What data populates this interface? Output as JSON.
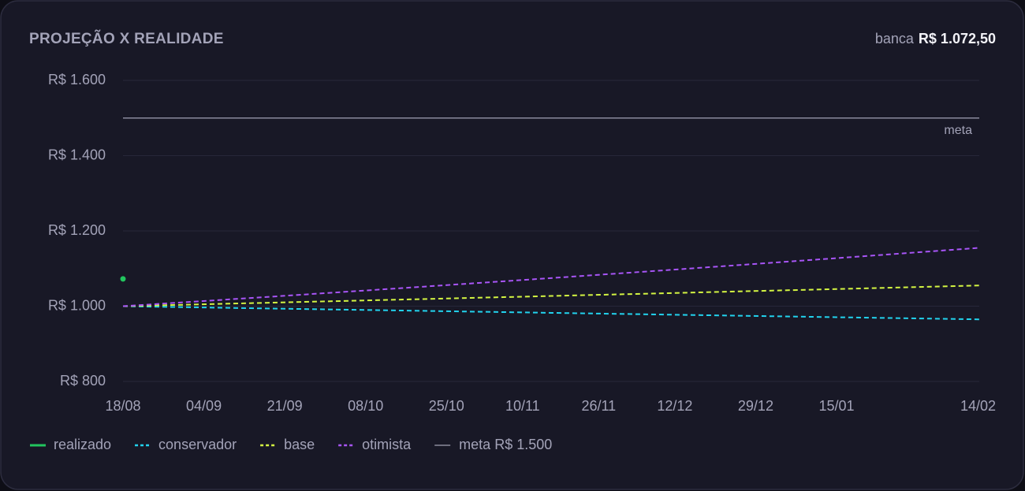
{
  "chart_data": {
    "type": "line",
    "title": "PROJEÇÃO X REALIDADE",
    "bank_label": "banca",
    "bank_value": "R$ 1.072,50",
    "x": [
      0,
      30,
      60,
      90,
      120,
      150,
      180
    ],
    "xlim": [
      0,
      180
    ],
    "xticks": [
      {
        "value": 0,
        "label": "18/08"
      },
      {
        "value": 17,
        "label": "04/09"
      },
      {
        "value": 34,
        "label": "21/09"
      },
      {
        "value": 51,
        "label": "08/10"
      },
      {
        "value": 68,
        "label": "25/10"
      },
      {
        "value": 84,
        "label": "10/11"
      },
      {
        "value": 100,
        "label": "26/11"
      },
      {
        "value": 116,
        "label": "12/12"
      },
      {
        "value": 133,
        "label": "29/12"
      },
      {
        "value": 150,
        "label": "15/01"
      },
      {
        "value": 180,
        "label": "14/02"
      }
    ],
    "ylim": [
      800,
      1600
    ],
    "yticks": [
      {
        "value": 800,
        "label": "R$ 800"
      },
      {
        "value": 1000,
        "label": "R$ 1.000"
      },
      {
        "value": 1200,
        "label": "R$ 1.200"
      },
      {
        "value": 1400,
        "label": "R$ 1.400"
      },
      {
        "value": 1600,
        "label": "R$ 1.600"
      }
    ],
    "grid": true,
    "series": [
      {
        "name": "realizado",
        "color": "#22c55e",
        "style": "solid",
        "values": [
          1072.5,
          null,
          null,
          null,
          null,
          null,
          null
        ]
      },
      {
        "name": "conservador",
        "color": "#22d3ee",
        "style": "dashed",
        "values": [
          1000,
          994,
          988.2,
          982.3,
          976.5,
          970.7,
          965
        ]
      },
      {
        "name": "base",
        "color": "#d4f542",
        "style": "dashed",
        "values": [
          1000,
          1009,
          1018,
          1027.1,
          1036.3,
          1045.6,
          1055
        ]
      },
      {
        "name": "otimista",
        "color": "#a855f7",
        "style": "dashed",
        "values": [
          1000,
          1024.3,
          1049.2,
          1074.7,
          1100.8,
          1127.6,
          1155
        ]
      }
    ],
    "meta": {
      "value": 1500,
      "label": "meta",
      "legend": "meta R$ 1.500",
      "color": "#8a8a9c"
    },
    "legend": "bottom-left"
  }
}
